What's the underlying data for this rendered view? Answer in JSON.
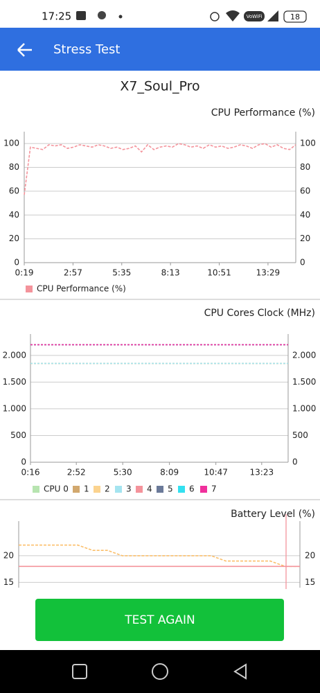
{
  "status_bar": {
    "time": "17:25",
    "network_label": "VoWiFi",
    "battery": "18"
  },
  "app_bar": {
    "title": "Stress Test"
  },
  "device_name": "X7_Soul_Pro",
  "chart_data": [
    {
      "type": "line",
      "title": "CPU Performance (%)",
      "x": [
        19,
        39,
        59,
        79,
        99,
        119,
        139,
        159,
        179,
        199,
        219,
        239,
        259,
        279,
        299,
        319,
        339,
        359,
        379,
        399,
        419,
        439,
        459,
        479,
        499,
        519,
        539,
        559,
        579,
        599,
        619,
        639,
        659,
        679,
        699,
        719,
        739,
        759,
        779,
        799,
        819,
        839,
        859,
        879,
        899
      ],
      "series": [
        {
          "name": "CPU Performance (%)",
          "color": "#f4939b",
          "values": [
            57,
            97,
            96,
            95,
            99,
            98,
            99,
            96,
            97,
            99,
            98,
            97,
            99,
            98,
            96,
            97,
            95,
            96,
            98,
            93,
            99,
            95,
            97,
            98,
            97,
            100,
            99,
            97,
            98,
            96,
            99,
            97,
            98,
            96,
            97,
            99,
            98,
            96,
            99,
            100,
            97,
            99,
            96,
            95,
            99
          ]
        }
      ],
      "xlim": [
        19,
        899
      ],
      "xticks": [
        {
          "value": 19,
          "label": "0:19"
        },
        {
          "value": 177,
          "label": "2:57"
        },
        {
          "value": 335,
          "label": "5:35"
        },
        {
          "value": 493,
          "label": "8:13"
        },
        {
          "value": 651,
          "label": "10:51"
        },
        {
          "value": 809,
          "label": "13:29"
        }
      ],
      "ylim": [
        0,
        110
      ],
      "yticks": [
        0,
        20,
        40,
        60,
        80,
        100
      ],
      "grid": true,
      "legend": "bottom-left"
    },
    {
      "type": "line",
      "title": "CPU Cores Clock (MHz)",
      "x": [
        16,
        893
      ],
      "series": [
        {
          "name": "CPU 0",
          "color": "#b7e4b0",
          "values": [
            1850,
            1850
          ]
        },
        {
          "name": "1",
          "color": "#d2a86e",
          "values": [
            1850,
            1850
          ]
        },
        {
          "name": "2",
          "color": "#fbd38f",
          "values": [
            1850,
            1850
          ]
        },
        {
          "name": "3",
          "color": "#a4e4f0",
          "values": [
            1850,
            1850
          ]
        },
        {
          "name": "4",
          "color": "#f4939b",
          "values": [
            2200,
            2200
          ]
        },
        {
          "name": "5",
          "color": "#6b7a99",
          "values": [
            2200,
            2200
          ]
        },
        {
          "name": "6",
          "color": "#33e0f0",
          "values": [
            2200,
            2200
          ]
        },
        {
          "name": "7",
          "color": "#f0309c",
          "values": [
            2200,
            2200
          ]
        }
      ],
      "xlim": [
        16,
        893
      ],
      "xticks": [
        {
          "value": 16,
          "label": "0:16"
        },
        {
          "value": 172,
          "label": "2:52"
        },
        {
          "value": 330,
          "label": "5:30"
        },
        {
          "value": 489,
          "label": "8:09"
        },
        {
          "value": 647,
          "label": "10:47"
        },
        {
          "value": 803,
          "label": "13:23"
        }
      ],
      "ylim": [
        0,
        2400
      ],
      "yticks": [
        0,
        500,
        {
          "value": 1000,
          "label": "1.000"
        },
        {
          "value": 1500,
          "label": "1.500"
        },
        {
          "value": 2000,
          "label": "2.000"
        }
      ],
      "grid": true,
      "legend": "bottom-left"
    },
    {
      "type": "line",
      "title": "Battery Level (%)",
      "series": [
        {
          "color": "#fbbf6a",
          "values": [
            22,
            22,
            22,
            22,
            22,
            21,
            21,
            20,
            20,
            20,
            20,
            20,
            20,
            20,
            19,
            19,
            19,
            19,
            18,
            18
          ]
        },
        {
          "color": "#f4939b",
          "values": [
            18,
            18,
            18,
            18,
            18,
            18,
            18,
            18,
            18,
            18,
            18,
            18,
            18,
            18,
            18,
            18,
            18,
            18,
            18,
            18
          ]
        }
      ],
      "ylim": [
        14,
        26.5
      ],
      "yticks": [
        15,
        20
      ],
      "grid": true
    }
  ],
  "button": {
    "label": "TEST AGAIN"
  }
}
